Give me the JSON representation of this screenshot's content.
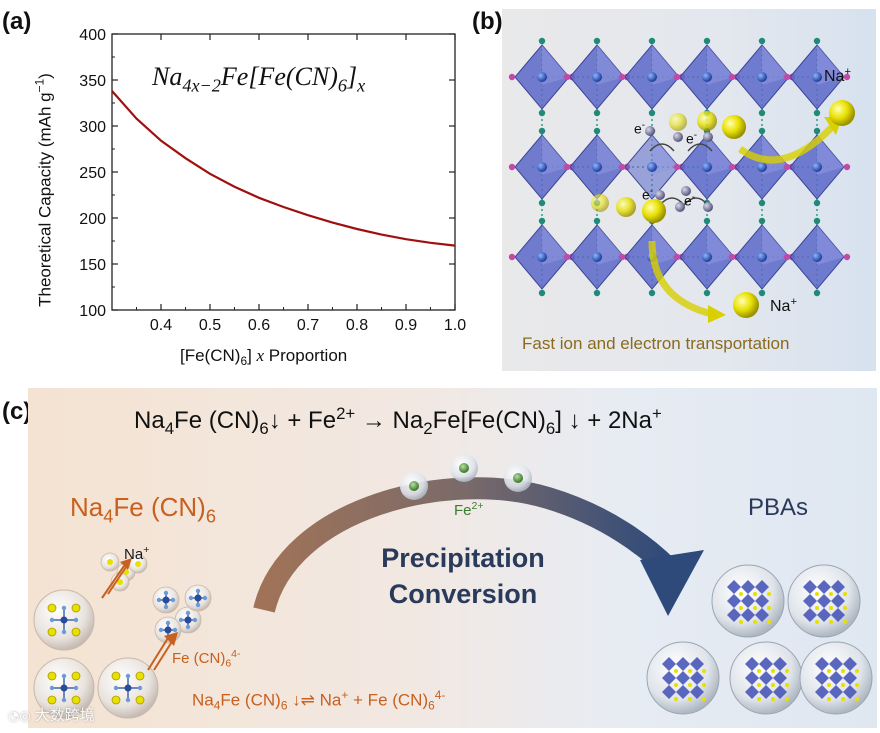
{
  "panel_a": {
    "label": "(a)",
    "formula": {
      "base": "Na",
      "sub1": "4x−2",
      "mid": "Fe[Fe(CN)",
      "sub2": "6",
      "end": "]",
      "sub3": "x"
    },
    "ylabel": "Theoretical Capacity (mAh g",
    "ylabel_sup": "−1",
    "ylabel_end": ")",
    "xlabel": {
      "a": "[Fe(CN)",
      "sub": "6",
      "b": "] ",
      "italic": "x",
      "c": " Proportion"
    },
    "curve_color": "#a01010"
  },
  "chart_data": {
    "type": "line",
    "title": "",
    "xlabel": "[Fe(CN)6] x Proportion",
    "ylabel": "Theoretical Capacity (mAh g−1)",
    "xlim": [
      0.3,
      1.0
    ],
    "ylim": [
      100,
      400
    ],
    "xticks": [
      0.4,
      0.5,
      0.6,
      0.7,
      0.8,
      0.9,
      1.0
    ],
    "yticks": [
      100,
      150,
      200,
      250,
      300,
      350,
      400
    ],
    "xtick_labels": [
      "0.4",
      "0.5",
      "0.6",
      "0.7",
      "0.8",
      "0.9",
      "1.0"
    ],
    "ytick_labels": [
      "100",
      "150",
      "200",
      "250",
      "300",
      "350",
      "400"
    ],
    "series": [
      {
        "name": "Na4x−2Fe[Fe(CN)6]x",
        "x": [
          0.3,
          0.35,
          0.4,
          0.45,
          0.5,
          0.55,
          0.6,
          0.65,
          0.7,
          0.75,
          0.8,
          0.85,
          0.9,
          0.95,
          1.0
        ],
        "y": [
          338,
          308,
          284,
          265,
          248,
          234,
          222,
          212,
          203,
          195,
          188,
          182,
          177,
          173,
          170
        ]
      }
    ]
  },
  "panel_b": {
    "label": "(b)",
    "na_label": "Na",
    "na_sup": "+",
    "e_label": "e",
    "e_sup": "-",
    "caption": "Fast ion and electron transportation",
    "caption_color": "#8a6a1e"
  },
  "panel_c": {
    "label": "(c)",
    "equation": {
      "a": "Na",
      "sub1": "4",
      "b": "Fe (CN)",
      "sub2": "6",
      "c": "↓ + Fe",
      "sup1": "2+",
      "d": " → Na",
      "sub3": "2",
      "e": "Fe[Fe(CN)",
      "sub4": "6",
      "f": "] ↓ + 2Na",
      "sup2": "+"
    },
    "reactant": {
      "a": "Na",
      "sub1": "4",
      "b": "Fe (CN)",
      "sub2": "6"
    },
    "na_ion": {
      "a": "Na",
      "sup": "+"
    },
    "fecn_ion": {
      "a": "Fe (CN)",
      "sub": "6",
      "sup": "4-"
    },
    "fe_ion": {
      "a": "Fe",
      "sup": "2+"
    },
    "arrow_text_1": "Precipitation",
    "arrow_text_2": "Conversion",
    "product": "PBAs",
    "dissolution": {
      "a": "Na",
      "sub1": "4",
      "b": "Fe (CN)",
      "sub2": "6",
      "c": " ↓⇌ Na",
      "sup1": "+",
      "d": " + Fe (CN)",
      "sub3": "6",
      "sup2": "4-"
    },
    "orange_color": "#c8601e",
    "navy_color": "#2a3a5a"
  },
  "watermark": "大数跨境"
}
